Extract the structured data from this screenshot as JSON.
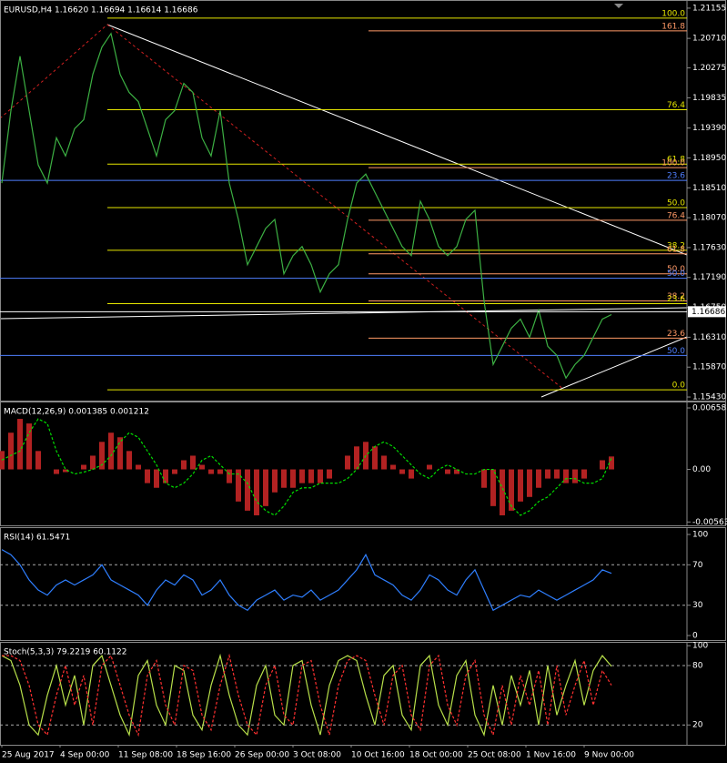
{
  "chart_data": [
    {
      "type": "line",
      "title": "EURUSD,H4  1.16620 1.16694 1.16614 1.16686",
      "ylim": [
        1.15377,
        1.21248
      ],
      "yticks": [
        {
          "value": 1.21155,
          "label": "1.21155"
        },
        {
          "value": 1.2071,
          "label": "1.20710"
        },
        {
          "value": 1.20275,
          "label": "1.20275"
        },
        {
          "value": 1.19835,
          "label": "1.19835"
        },
        {
          "value": 1.1939,
          "label": "1.19390"
        },
        {
          "value": 1.1895,
          "label": "1.18950"
        },
        {
          "value": 1.1851,
          "label": "1.18510"
        },
        {
          "value": 1.1807,
          "label": "1.18070"
        },
        {
          "value": 1.1763,
          "label": "1.17630"
        },
        {
          "value": 1.1719,
          "label": "1.17190"
        },
        {
          "value": 1.1675,
          "label": "1.16750"
        },
        {
          "value": 1.1631,
          "label": "1.16310"
        },
        {
          "value": 1.1587,
          "label": "1.15870"
        },
        {
          "value": 1.1543,
          "label": "1.15430"
        }
      ],
      "last_price": {
        "value": 1.16686,
        "label": "1.16686"
      },
      "series": [
        {
          "color": "#3cb043",
          "values": [
            1.18579,
            1.19647,
            1.20447,
            1.19647,
            1.18846,
            1.18579,
            1.19246,
            1.18979,
            1.1938,
            1.19513,
            1.2018,
            1.20581,
            1.20781,
            1.2018,
            1.19913,
            1.1978,
            1.1938,
            1.18979,
            1.19513,
            1.19647,
            1.20047,
            1.19913,
            1.19246,
            1.18979,
            1.19647,
            1.18579,
            1.18045,
            1.17378,
            1.17645,
            1.17912,
            1.18045,
            1.17244,
            1.17511,
            1.17645,
            1.17378,
            1.16977,
            1.17244,
            1.17378,
            1.18045,
            1.18579,
            1.18712,
            1.18445,
            1.18178,
            1.17912,
            1.17645,
            1.17511,
            1.18312,
            1.18045,
            1.17645,
            1.17511,
            1.17645,
            1.18045,
            1.18179,
            1.16844,
            1.1591,
            1.16177,
            1.16444,
            1.16577,
            1.1631,
            1.1671,
            1.16177,
            1.16043,
            1.15709,
            1.1591,
            1.16043,
            1.1631,
            1.16577,
            1.16644
          ]
        }
      ],
      "fib_levels": [
        {
          "label": "100.0",
          "value": 1.21008,
          "color": "#e6e600"
        },
        {
          "label": "161.8",
          "value": 1.20821,
          "color": "#ff9966"
        },
        {
          "label": "76.4",
          "value": 1.1966,
          "color": "#e6e600"
        },
        {
          "label": "61.8",
          "value": 1.18859,
          "color": "#e6e600"
        },
        {
          "label": "100.0",
          "value": 1.18806,
          "color": "#ff9966"
        },
        {
          "label": "23.6",
          "value": 1.18619,
          "color": "#4f7fff"
        },
        {
          "label": "50.0",
          "value": 1.18219,
          "color": "#e6e600"
        },
        {
          "label": "76.4",
          "value": 1.18032,
          "color": "#ff9966"
        },
        {
          "label": "38.2",
          "value": 1.17591,
          "color": "#e6e600"
        },
        {
          "label": "61.8",
          "value": 1.17538,
          "color": "#ff9966"
        },
        {
          "label": "50.0",
          "value": 1.17244,
          "color": "#ff9966"
        },
        {
          "label": "50.0",
          "value": 1.17178,
          "color": "#4f7fff"
        },
        {
          "label": "38.2",
          "value": 1.16844,
          "color": "#ff9966"
        },
        {
          "label": "23.6",
          "value": 1.16804,
          "color": "#e6e600"
        },
        {
          "label": "23.6",
          "value": 1.16297,
          "color": "#ff9966"
        },
        {
          "label": "50.0",
          "value": 1.16043,
          "color": "#4f7fff"
        },
        {
          "label": "0.0",
          "value": 1.15536,
          "color": "#e6e600"
        }
      ]
    },
    {
      "type": "macd",
      "title": "MACD(12,26,9) 0.001385 0.001212",
      "ylim": [
        -0.005993,
        0.007074
      ],
      "yticks": [
        0.006583,
        {
          "value": 0,
          "label": "0.00"
        },
        -0.00563
      ],
      "series": [
        {
          "style": "bars",
          "color": "#b22222",
          "values": [
            0.00197,
            0.00393,
            0.00541,
            0.00492,
            0.00197,
            0,
            -0.00049,
            -0.00029,
            0,
            0.00049,
            0.00147,
            0.00295,
            0.00393,
            0.00344,
            0.00197,
            0.00049,
            -0.00147,
            -0.00197,
            -0.00147,
            -0.00049,
            0.00098,
            0.00147,
            0.00049,
            -0.00049,
            -0.00049,
            -0.00147,
            -0.00344,
            -0.00442,
            -0.00492,
            -0.00393,
            -0.00246,
            -0.00197,
            -0.00197,
            -0.00147,
            -0.00147,
            -0.00147,
            -0.00098,
            0,
            0.00147,
            0.00246,
            0.00295,
            0.00246,
            0.00147,
            0.00049,
            -0.00049,
            -0.00098,
            0,
            0.00049,
            0,
            -0.00049,
            -0.00049,
            0,
            0,
            -0.00197,
            -0.00393,
            -0.00492,
            -0.00442,
            -0.00344,
            -0.00295,
            -0.00197,
            -0.00098,
            -0.00098,
            -0.00147,
            -0.00147,
            -0.00098,
            0,
            0.00098,
            0.001385
          ]
        },
        {
          "style": "dash",
          "color": "#00dd00",
          "values": [
            0.001,
            0.0015,
            0.00197,
            0.00393,
            0.00541,
            0.00492,
            0.00197,
            0,
            -0.00049,
            -0.00029,
            0,
            0.00049,
            0.00147,
            0.00295,
            0.00393,
            0.00344,
            0.00197,
            0.00049,
            -0.00147,
            -0.00197,
            -0.00147,
            -0.00049,
            0.00098,
            0.00147,
            0.00049,
            -0.00049,
            -0.00049,
            -0.00147,
            -0.00344,
            -0.00442,
            -0.00492,
            -0.00393,
            -0.00246,
            -0.00197,
            -0.00197,
            -0.00147,
            -0.00147,
            -0.00147,
            -0.00098,
            0,
            0.00147,
            0.00246,
            0.00295,
            0.00246,
            0.00147,
            0.00049,
            -0.00049,
            -0.00098,
            0,
            0.00049,
            0,
            -0.00049,
            -0.00049,
            0,
            0,
            -0.00197,
            -0.00393,
            -0.00492,
            -0.00442,
            -0.00344,
            -0.00295,
            -0.00197,
            -0.00098,
            -0.00098,
            -0.00147,
            -0.00147,
            -0.00098,
            0.001212
          ]
        }
      ]
    },
    {
      "type": "line",
      "title": "RSI(14) 61.5471",
      "ylim": [
        -4.5,
        105.4
      ],
      "yticks": [
        100,
        70,
        30,
        0
      ],
      "levels": [
        70,
        30
      ],
      "series": [
        {
          "color": "#2f7fff",
          "values": [
            85,
            80,
            70,
            55,
            45,
            40,
            50,
            55,
            50,
            55,
            60,
            70,
            55,
            50,
            45,
            40,
            30,
            45,
            55,
            50,
            60,
            55,
            40,
            45,
            55,
            40,
            30,
            25,
            35,
            40,
            45,
            35,
            40,
            38,
            45,
            35,
            40,
            45,
            55,
            65,
            80,
            60,
            55,
            50,
            40,
            35,
            45,
            60,
            55,
            45,
            40,
            55,
            65,
            45,
            25,
            30,
            35,
            40,
            38,
            45,
            40,
            35,
            40,
            45,
            50,
            55,
            65,
            61.5471
          ]
        }
      ]
    },
    {
      "type": "line",
      "title": "Stoch(5,3,3) 79.2219 60.1122",
      "ylim": [
        0,
        102
      ],
      "yticks": [
        100,
        80,
        20
      ],
      "levels": [
        80,
        20
      ],
      "x_labels": [
        "25 Aug 2017",
        "4 Sep 00:00",
        "11 Sep 08:00",
        "18 Sep 16:00",
        "26 Sep 00:00",
        "3 Oct 08:00",
        "10 Oct 16:00",
        "18 Oct 00:00",
        "25 Oct 08:00",
        "1 Nov 16:00",
        "9 Nov 00:00"
      ],
      "series": [
        {
          "color": "#b8e04a",
          "values": [
            90,
            85,
            60,
            20,
            10,
            50,
            80,
            40,
            70,
            20,
            80,
            90,
            60,
            30,
            10,
            70,
            85,
            40,
            20,
            80,
            75,
            30,
            15,
            60,
            90,
            50,
            20,
            10,
            60,
            80,
            30,
            20,
            80,
            85,
            40,
            10,
            60,
            85,
            90,
            85,
            50,
            20,
            70,
            80,
            30,
            15,
            80,
            90,
            40,
            20,
            70,
            85,
            30,
            10,
            60,
            20,
            70,
            40,
            75,
            20,
            80,
            30,
            60,
            85,
            40,
            75,
            90,
            79.2219
          ]
        },
        {
          "style": "dash",
          "color": "#ff3030",
          "values": [
            90,
            90,
            85,
            60,
            20,
            10,
            50,
            80,
            40,
            70,
            20,
            80,
            90,
            60,
            30,
            10,
            70,
            85,
            40,
            20,
            80,
            75,
            30,
            15,
            60,
            90,
            50,
            20,
            10,
            60,
            80,
            30,
            20,
            80,
            85,
            40,
            10,
            60,
            85,
            90,
            85,
            50,
            20,
            70,
            80,
            30,
            15,
            80,
            90,
            40,
            20,
            70,
            85,
            30,
            10,
            60,
            20,
            70,
            40,
            75,
            20,
            80,
            30,
            60,
            85,
            40,
            75,
            60.1122
          ]
        }
      ]
    }
  ]
}
